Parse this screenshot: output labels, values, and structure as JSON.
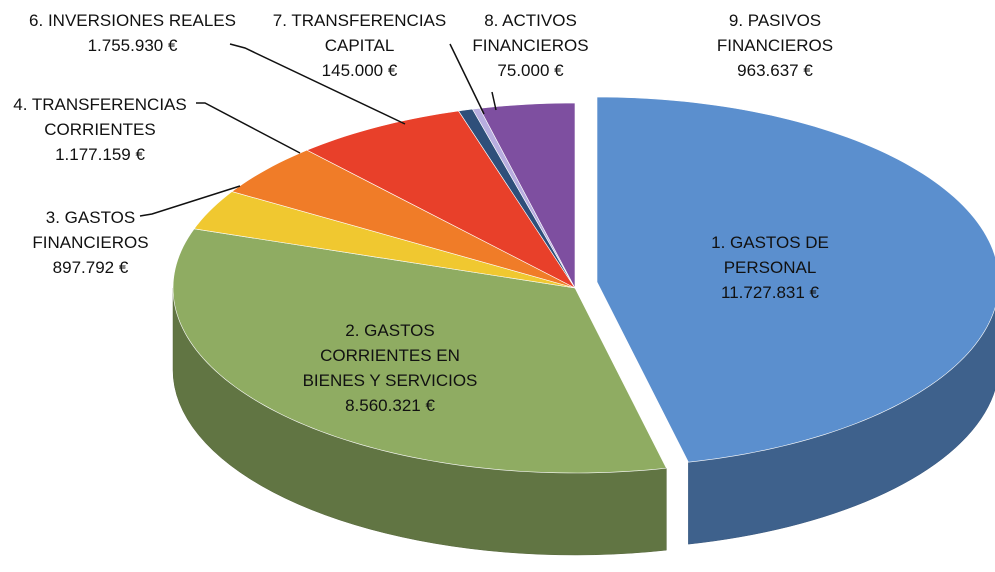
{
  "chart_data": {
    "type": "pie",
    "categories": [
      "1. GASTOS DE PERSONAL",
      "2. GASTOS CORRIENTES EN BIENES Y SERVICIOS",
      "3. GASTOS FINANCIEROS",
      "4. TRANSFERENCIAS CORRIENTES",
      "6. INVERSIONES REALES",
      "7. TRANSFERENCIAS CAPITAL",
      "8. ACTIVOS FINANCIEROS",
      "9. PASIVOS FINANCIEROS"
    ],
    "values": [
      11727831,
      8560321,
      897792,
      1177159,
      1755930,
      145000,
      75000,
      963637
    ],
    "value_labels": [
      "11.727.831 €",
      "8.560.321 €",
      "897.792 €",
      "1.177.159 €",
      "1.755.930 €",
      "145.000 €",
      "75.000 €",
      "963.637 €"
    ],
    "colors": [
      "#5b8fce",
      "#8fac62",
      "#f0c830",
      "#f07c28",
      "#e8402a",
      "#2f4f7a",
      "#b8aee0",
      "#7e4fa0"
    ]
  }
}
